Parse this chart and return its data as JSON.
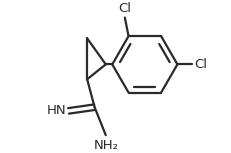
{
  "bg_color": "#ffffff",
  "line_color": "#2a2a2a",
  "line_width": 1.6,
  "font_size": 9.5,
  "figsize": [
    2.32,
    1.53
  ],
  "dpi": 100,
  "xlim": [
    0.0,
    1.0
  ],
  "ylim": [
    0.0,
    1.0
  ]
}
